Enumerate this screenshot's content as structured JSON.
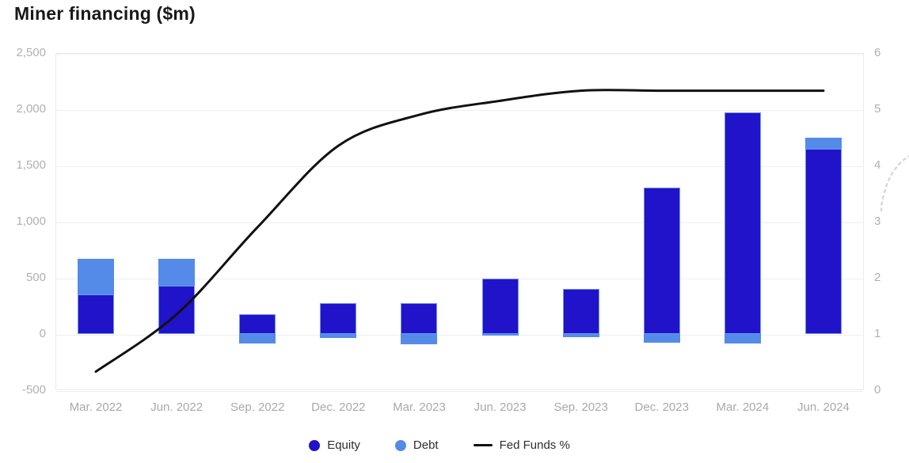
{
  "page": {
    "title": "Miner financing ($m)"
  },
  "colors": {
    "equity": "#2013C9",
    "debt": "#548BE9",
    "fed_funds_line": "#111111",
    "equity_border": "#6E96EE",
    "gridline": "#efefef",
    "axis_label": "#b0b0b4",
    "title_text": "#191919",
    "legend_text": "#2e2e2e",
    "watermark": "#d9d9d9",
    "background": "#ffffff"
  },
  "legend": {
    "equity_label": "Equity",
    "debt_label": "Debt",
    "fed_funds_label": "Fed Funds %"
  },
  "chart_data": {
    "type": "bar",
    "subtype": "stacked-bars-with-line-overlay",
    "title": "Miner financing ($m)",
    "categories": [
      "Mar. 2022",
      "Jun. 2022",
      "Sep. 2022",
      "Dec. 2022",
      "Mar. 2023",
      "Jun. 2023",
      "Sep. 2023",
      "Dec. 2023",
      "Mar. 2024",
      "Jun. 2024"
    ],
    "series": [
      {
        "name": "Equity",
        "type": "bar",
        "axis": "left",
        "color": "#2013C9",
        "values": [
          355,
          432,
          175,
          275,
          275,
          495,
          400,
          1300,
          1975,
          1650
        ]
      },
      {
        "name": "Debt",
        "type": "bar",
        "axis": "left",
        "color": "#548BE9",
        "values": [
          315,
          238,
          -85,
          -35,
          -90,
          -10,
          -30,
          -80,
          -85,
          100
        ]
      },
      {
        "name": "Fed Funds %",
        "type": "line",
        "axis": "right",
        "color": "#111111",
        "values": [
          0.33,
          1.35,
          2.9,
          4.35,
          4.9,
          5.15,
          5.33,
          5.33,
          5.33,
          5.33
        ]
      }
    ],
    "left_axis": {
      "label": "$m",
      "min": -500,
      "max": 2500,
      "tick_step": 500,
      "ticks": [
        "2,500",
        "2,000",
        "1,500",
        "1,000",
        "500",
        "0",
        "-500"
      ],
      "tick_values": [
        2500,
        2000,
        1500,
        1000,
        500,
        0,
        -500
      ]
    },
    "right_axis": {
      "label": "Fed Funds %",
      "min": 0,
      "max": 6,
      "tick_step": 1,
      "ticks": [
        "6",
        "5",
        "4",
        "3",
        "2",
        "1",
        "0"
      ],
      "tick_values": [
        6,
        5,
        4,
        3,
        2,
        1,
        0
      ]
    },
    "grid": true,
    "legend_position": "bottom",
    "notes": "Stacked quarterly bars: Equity (dark blue) + Debt (light blue, negative below zero in Sep 2022 - Mar 2024); black line = effective Fed Funds rate on right axis."
  }
}
